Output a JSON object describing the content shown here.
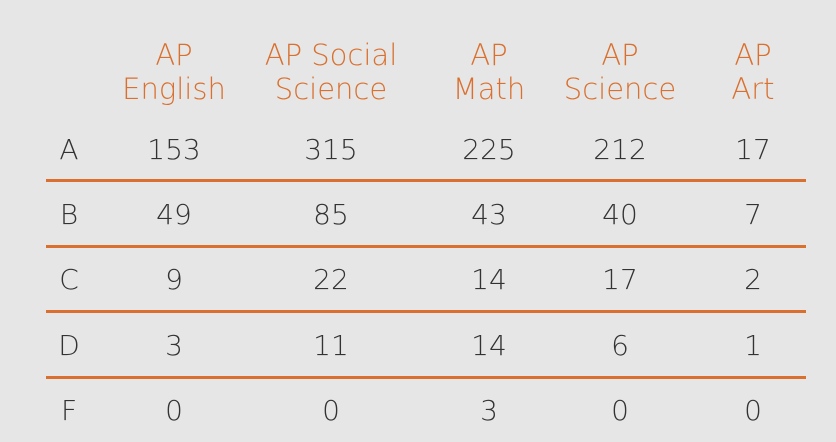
{
  "table": {
    "columns": [
      [
        "AP",
        "English"
      ],
      [
        "AP Social",
        "Science"
      ],
      [
        "AP",
        "Math"
      ],
      [
        "AP",
        "Science"
      ],
      [
        "AP",
        "Art"
      ]
    ],
    "rows": [
      {
        "grade": "A",
        "values": [
          "153",
          "315",
          "225",
          "212",
          "17"
        ]
      },
      {
        "grade": "B",
        "values": [
          "49",
          "85",
          "43",
          "40",
          "7"
        ]
      },
      {
        "grade": "C",
        "values": [
          "9",
          "22",
          "14",
          "17",
          "2"
        ]
      },
      {
        "grade": "D",
        "values": [
          "3",
          "11",
          "14",
          "6",
          "1"
        ]
      },
      {
        "grade": "F",
        "values": [
          "0",
          "0",
          "3",
          "0",
          "0"
        ]
      }
    ]
  },
  "colors": {
    "accent": "#d9702f",
    "text": "#333333",
    "background": "#e6e6e6"
  }
}
